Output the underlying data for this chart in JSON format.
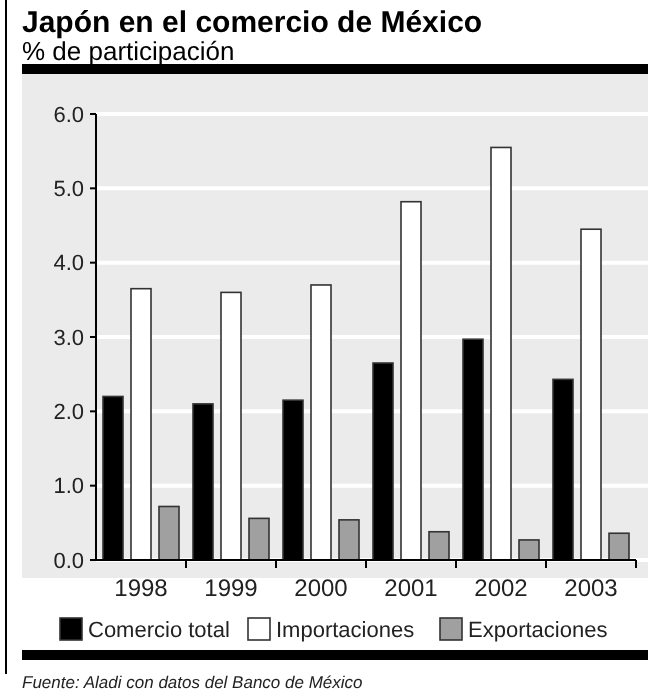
{
  "chart_data": {
    "type": "bar",
    "title": "Japón en el comercio de México",
    "subtitle": "% de participación",
    "categories": [
      "1998",
      "1999",
      "2000",
      "2001",
      "2002",
      "2003"
    ],
    "series": [
      {
        "name": "Comercio total",
        "color": "#000000",
        "values": [
          2.2,
          2.1,
          2.15,
          2.65,
          2.97,
          2.43
        ]
      },
      {
        "name": "Importaciones",
        "color": "#ffffff",
        "values": [
          3.65,
          3.6,
          3.7,
          4.82,
          5.55,
          4.45
        ]
      },
      {
        "name": "Exportaciones",
        "color": "#a0a0a0",
        "values": [
          0.72,
          0.56,
          0.54,
          0.38,
          0.27,
          0.36
        ]
      }
    ],
    "ylim": [
      0,
      6
    ],
    "yticks": [
      {
        "value": 0,
        "label": "0.0"
      },
      {
        "value": 1,
        "label": "1.0"
      },
      {
        "value": 2,
        "label": "2.0"
      },
      {
        "value": 3,
        "label": "3.0"
      },
      {
        "value": 4,
        "label": "4.0"
      },
      {
        "value": 5,
        "label": "5.0"
      },
      {
        "value": 6,
        "label": "6.0"
      }
    ],
    "grid": "y",
    "legend": "bottom",
    "annotations": [
      "Fuente: Aladi con datos del Banco de México"
    ]
  }
}
